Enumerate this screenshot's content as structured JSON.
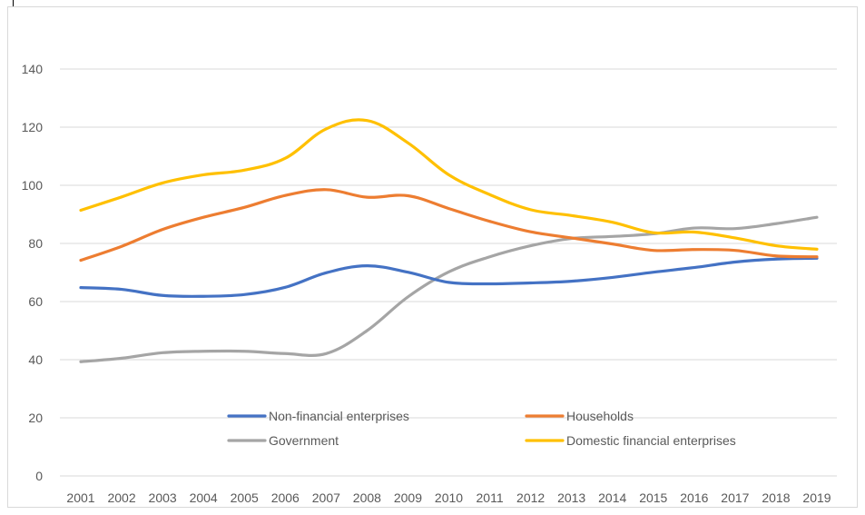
{
  "chart_data": {
    "type": "line",
    "title": "",
    "xlabel": "",
    "ylabel": "",
    "ylim": [
      0,
      140
    ],
    "yticks": [
      0,
      20,
      40,
      60,
      80,
      100,
      120,
      140
    ],
    "grid": true,
    "legend_position": "bottom-inside",
    "categories": [
      "2001",
      "2002",
      "2003",
      "2004",
      "2005",
      "2006",
      "2007",
      "2008",
      "2009",
      "2010",
      "2011",
      "2012",
      "2013",
      "2014",
      "2015",
      "2016",
      "2017",
      "2018",
      "2019"
    ],
    "series": [
      {
        "name": "Non-financial enterprises",
        "color": "#4472c4",
        "values": [
          64.8,
          64.2,
          62.1,
          61.8,
          62.4,
          64.9,
          69.9,
          72.3,
          70.1,
          66.6,
          66.1,
          66.4,
          67.0,
          68.3,
          70.1,
          71.7,
          73.6,
          74.6,
          74.9
        ]
      },
      {
        "name": "Households",
        "color": "#ed7d31",
        "values": [
          74.2,
          79.0,
          84.8,
          89.0,
          92.4,
          96.5,
          98.5,
          95.9,
          96.4,
          92.0,
          87.6,
          84.0,
          81.9,
          79.8,
          77.6,
          77.9,
          77.6,
          75.7,
          75.4
        ]
      },
      {
        "name": "Government",
        "color": "#a5a5a5",
        "values": [
          39.3,
          40.5,
          42.4,
          42.9,
          42.9,
          42.1,
          42.1,
          50.0,
          61.6,
          70.2,
          75.4,
          79.2,
          81.7,
          82.4,
          83.3,
          85.3,
          85.1,
          86.8,
          89.0
        ]
      },
      {
        "name": "Domestic financial enterprises",
        "color": "#ffc000",
        "values": [
          91.4,
          96.0,
          100.8,
          103.6,
          105.2,
          109.3,
          119.4,
          122.3,
          114.6,
          103.6,
          96.8,
          91.6,
          89.6,
          87.3,
          83.7,
          83.9,
          81.9,
          79.2,
          78.0
        ]
      }
    ]
  }
}
